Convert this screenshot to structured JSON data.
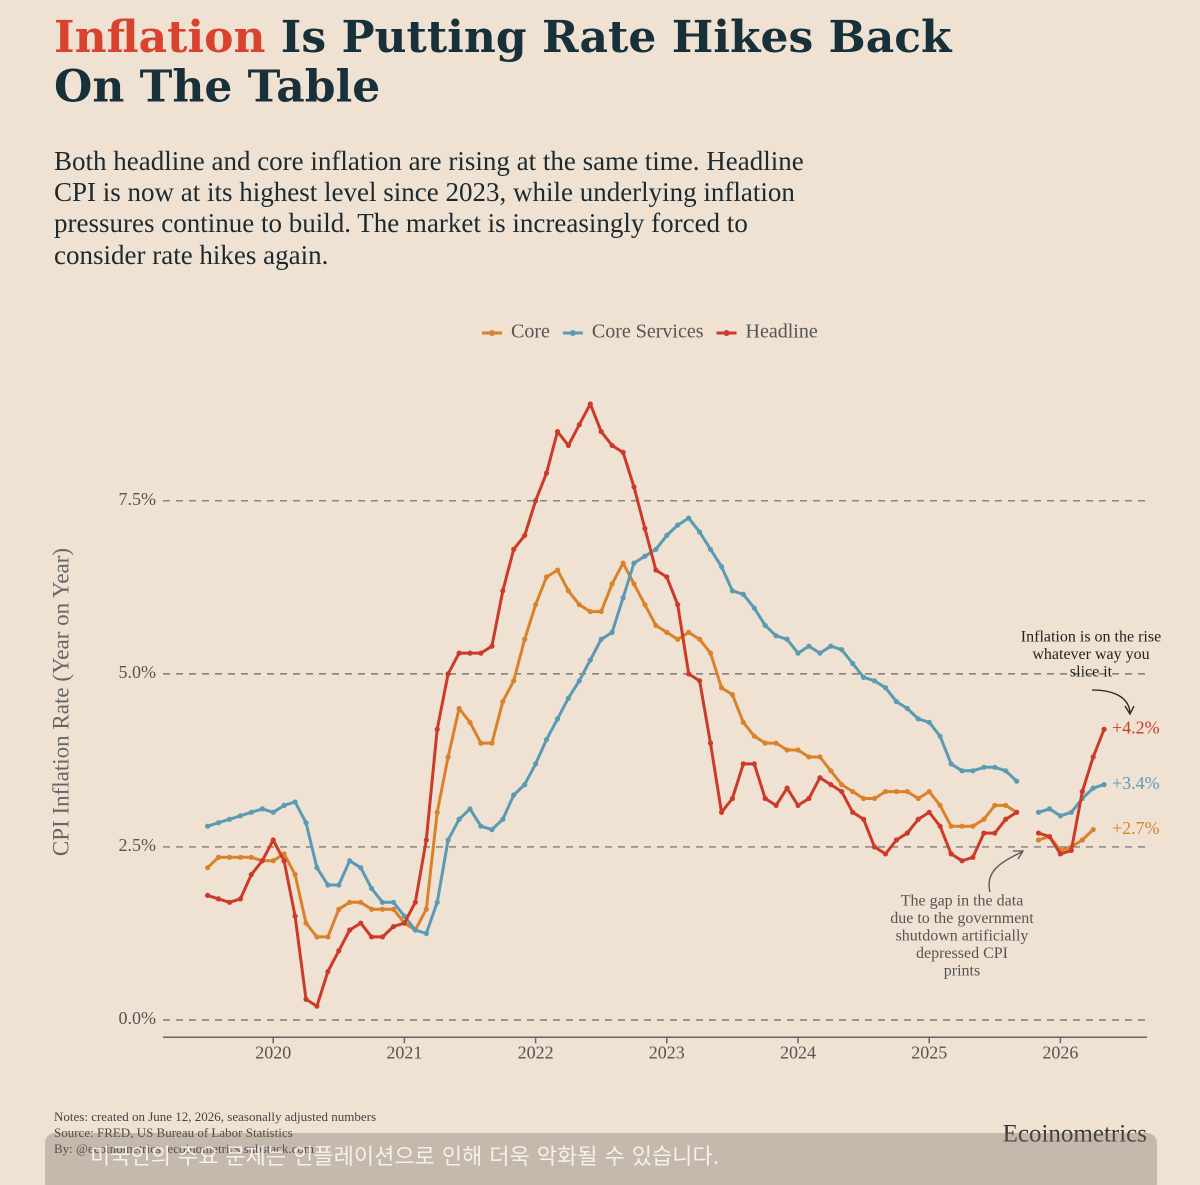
{
  "title": {
    "highlight": "Inflation",
    "line1_rest": "Is Putting Rate Hikes Back",
    "line2": "On The Table"
  },
  "subtitle": [
    "Both headline and core inflation are rising at the same time. Headline",
    "CPI is now at its highest level since 2023, while underlying inflation",
    "pressures continue to build. The market is increasingly forced to",
    "consider rate hikes again."
  ],
  "chart_data": {
    "type": "line",
    "y_label": "CPI Inflation Rate (Year on Year)",
    "x": [
      2019.5,
      2019.583,
      2019.667,
      2019.75,
      2019.833,
      2019.917,
      2020,
      2020.083,
      2020.167,
      2020.25,
      2020.333,
      2020.417,
      2020.5,
      2020.583,
      2020.667,
      2020.75,
      2020.833,
      2020.917,
      2021,
      2021.083,
      2021.167,
      2021.25,
      2021.333,
      2021.417,
      2021.5,
      2021.583,
      2021.667,
      2021.75,
      2021.833,
      2021.917,
      2022,
      2022.083,
      2022.167,
      2022.25,
      2022.333,
      2022.417,
      2022.5,
      2022.583,
      2022.667,
      2022.75,
      2022.833,
      2022.917,
      2023,
      2023.083,
      2023.167,
      2023.25,
      2023.333,
      2023.417,
      2023.5,
      2023.583,
      2023.667,
      2023.75,
      2023.833,
      2023.917,
      2024,
      2024.083,
      2024.167,
      2024.25,
      2024.333,
      2024.417,
      2024.5,
      2024.583,
      2024.667,
      2024.75,
      2024.833,
      2024.917,
      2025,
      2025.083,
      2025.167,
      2025.25,
      2025.333,
      2025.417,
      2025.5,
      2025.583,
      2025.667,
      2025.75,
      2025.833,
      2025.917,
      2026,
      2026.083,
      2026.167,
      2026.25,
      2026.333
    ],
    "series": [
      {
        "name": "Core",
        "color": "#d9822b",
        "end_label": "+2.7%",
        "values": [
          2.2,
          2.35,
          2.35,
          2.35,
          2.35,
          2.3,
          2.3,
          2.4,
          2.1,
          1.4,
          1.2,
          1.2,
          1.6,
          1.7,
          1.7,
          1.6,
          1.6,
          1.6,
          1.4,
          1.3,
          1.6,
          3.0,
          3.8,
          4.5,
          4.3,
          4.0,
          4.0,
          4.6,
          4.9,
          5.5,
          6.0,
          6.4,
          6.5,
          6.2,
          6.0,
          5.9,
          5.9,
          6.3,
          6.6,
          6.3,
          6.0,
          5.7,
          5.6,
          5.5,
          5.6,
          5.5,
          5.3,
          4.8,
          4.7,
          4.3,
          4.1,
          4.0,
          4.0,
          3.9,
          3.9,
          3.8,
          3.8,
          3.6,
          3.4,
          3.3,
          3.2,
          3.2,
          3.3,
          3.3,
          3.3,
          3.2,
          3.3,
          3.1,
          2.8,
          2.8,
          2.8,
          2.9,
          3.1,
          3.1,
          3.0,
          null,
          2.6,
          2.65,
          2.45,
          2.5,
          2.6,
          2.75,
          null
        ]
      },
      {
        "name": "Core Services",
        "color": "#5a9ab5",
        "end_label": "+3.4%",
        "values": [
          2.8,
          2.85,
          2.9,
          2.95,
          3.0,
          3.05,
          3.0,
          3.1,
          3.15,
          2.85,
          2.2,
          1.95,
          1.95,
          2.3,
          2.2,
          1.9,
          1.7,
          1.7,
          1.5,
          1.3,
          1.25,
          1.7,
          2.6,
          2.9,
          3.05,
          2.8,
          2.75,
          2.9,
          3.25,
          3.4,
          3.7,
          4.05,
          4.35,
          4.65,
          4.9,
          5.2,
          5.5,
          5.6,
          6.1,
          6.6,
          6.7,
          6.8,
          7.0,
          7.15,
          7.25,
          7.05,
          6.8,
          6.55,
          6.2,
          6.15,
          5.95,
          5.7,
          5.55,
          5.5,
          5.3,
          5.4,
          5.3,
          5.4,
          5.35,
          5.15,
          4.95,
          4.9,
          4.8,
          4.6,
          4.5,
          4.35,
          4.3,
          4.1,
          3.7,
          3.6,
          3.6,
          3.65,
          3.65,
          3.6,
          3.45,
          null,
          3.0,
          3.05,
          2.95,
          3.0,
          3.2,
          3.35,
          3.4
        ]
      },
      {
        "name": "Headline",
        "color": "#cc3a2a",
        "end_label": "+4.2%",
        "values": [
          1.8,
          1.75,
          1.7,
          1.75,
          2.1,
          2.3,
          2.6,
          2.3,
          1.5,
          0.3,
          0.2,
          0.7,
          1.0,
          1.3,
          1.4,
          1.2,
          1.2,
          1.35,
          1.4,
          1.7,
          2.6,
          4.2,
          5.0,
          5.3,
          5.3,
          5.3,
          5.4,
          6.2,
          6.8,
          7.0,
          7.5,
          7.9,
          8.5,
          8.3,
          8.6,
          8.9,
          8.5,
          8.3,
          8.2,
          7.7,
          7.1,
          6.5,
          6.4,
          6.0,
          5.0,
          4.9,
          4.0,
          3.0,
          3.2,
          3.7,
          3.7,
          3.2,
          3.1,
          3.35,
          3.1,
          3.2,
          3.5,
          3.4,
          3.3,
          3.0,
          2.9,
          2.5,
          2.4,
          2.6,
          2.7,
          2.9,
          3.0,
          2.8,
          2.4,
          2.3,
          2.35,
          2.7,
          2.7,
          2.9,
          3.0,
          null,
          2.7,
          2.65,
          2.4,
          2.45,
          3.3,
          3.8,
          4.2
        ]
      }
    ],
    "xlim": [
      2019.16,
      2026.66
    ],
    "xticks": [
      2020,
      2021,
      2022,
      2023,
      2024,
      2025,
      2026
    ],
    "ylim": [
      -0.25,
      9.0
    ],
    "yticks": [
      {
        "value": 0,
        "label": "0.0%"
      },
      {
        "value": 2.5,
        "label": "2.5%"
      },
      {
        "value": 5,
        "label": "5.0%"
      },
      {
        "value": 7.5,
        "label": "7.5%"
      }
    ],
    "grid": true,
    "legend": "top",
    "annotations": [
      {
        "lines": [
          "Inflation is on the rise",
          "whatever way you",
          "slice it"
        ]
      },
      {
        "lines": [
          "The gap in the data",
          "due to the government",
          "shutdown artificially",
          "depressed CPI",
          "prints"
        ]
      }
    ]
  },
  "footer": {
    "notes": "Notes: created on June 12, 2026, seasonally adjusted numbers",
    "source": "Source: FRED, US Bureau of Labor Statistics",
    "by": "By: @ecoinometrics, ecoinometrics.substack.com",
    "brand": "Ecoinometrics"
  },
  "caption": "미국인의 주요 문제는 인플레이션으로 인해 더욱 악화될 수 있습니다."
}
